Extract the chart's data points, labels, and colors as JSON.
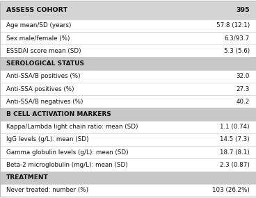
{
  "rows": [
    {
      "label": "ASSESS COHORT",
      "value": "395",
      "type": "header_main"
    },
    {
      "label": "Age mean/SD (years)",
      "value": "57.8 (12.1)",
      "type": "data"
    },
    {
      "label": "Sex male/female (%)",
      "value": "6.3/93.7",
      "type": "data"
    },
    {
      "label": "ESSDAI score mean (SD)",
      "value": "5.3 (5.6)",
      "type": "data"
    },
    {
      "label": "SEROLOGICAL STATUS",
      "value": "",
      "type": "header_section"
    },
    {
      "label": "Anti-SSA/B positives (%)",
      "value": "32.0",
      "type": "data"
    },
    {
      "label": "Anti-SSA positives (%)",
      "value": "27.3",
      "type": "data"
    },
    {
      "label": "Anti-SSA/B negatives (%)",
      "value": "40.2",
      "type": "data"
    },
    {
      "label": "B CELL ACTIVATION MARKERS",
      "value": "",
      "type": "header_section"
    },
    {
      "label": "Kappa/Lambda light chain ratio: mean (SD)",
      "value": "1.1 (0.74)",
      "type": "data"
    },
    {
      "label": "IgG levels (g/L): mean (SD)",
      "value": "14.5 (7.3)",
      "type": "data"
    },
    {
      "label": "Gamma globulin levels (g/L): mean (SD)",
      "value": "18.7 (8.1)",
      "type": "data"
    },
    {
      "label": "Beta-2 microglobulin (mg/L): mean (SD)",
      "value": "2.3 (0.87)",
      "type": "data"
    },
    {
      "label": "TREATMENT",
      "value": "",
      "type": "header_section"
    },
    {
      "label": "Never treated: number (%)",
      "value": "103 (26.2%)",
      "type": "data"
    }
  ],
  "header_main_bg": "#d4d4d4",
  "header_section_bg": "#c8c8c8",
  "data_bg": "#ffffff",
  "outer_border_color": "#bbbbbb",
  "row_divider_color": "#cccccc",
  "header_main_fontsize": 6.8,
  "section_fontsize": 6.5,
  "data_fontsize": 6.3,
  "text_color": "#111111",
  "bg_color": "#f0f0f0"
}
